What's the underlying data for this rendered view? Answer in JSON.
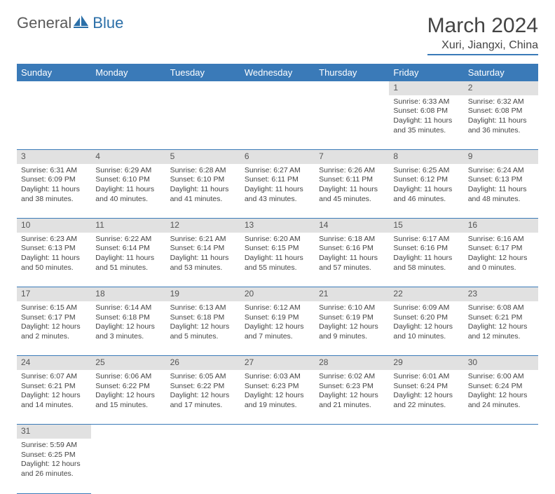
{
  "brand": {
    "part1": "General",
    "part2": "Blue",
    "sail_color": "#2b6fa8"
  },
  "title": "March 2024",
  "location": "Xuri, Jiangxi, China",
  "colors": {
    "header_bg": "#3a7ab8",
    "header_text": "#ffffff",
    "daynum_bg": "#e1e1e1",
    "rule": "#3a7ab8",
    "text": "#444444",
    "bg": "#ffffff"
  },
  "weekdays": [
    "Sunday",
    "Monday",
    "Tuesday",
    "Wednesday",
    "Thursday",
    "Friday",
    "Saturday"
  ],
  "weeks": [
    [
      null,
      null,
      null,
      null,
      null,
      {
        "n": "1",
        "sunrise": "6:33 AM",
        "sunset": "6:08 PM",
        "daylight": "11 hours and 35 minutes."
      },
      {
        "n": "2",
        "sunrise": "6:32 AM",
        "sunset": "6:08 PM",
        "daylight": "11 hours and 36 minutes."
      }
    ],
    [
      {
        "n": "3",
        "sunrise": "6:31 AM",
        "sunset": "6:09 PM",
        "daylight": "11 hours and 38 minutes."
      },
      {
        "n": "4",
        "sunrise": "6:29 AM",
        "sunset": "6:10 PM",
        "daylight": "11 hours and 40 minutes."
      },
      {
        "n": "5",
        "sunrise": "6:28 AM",
        "sunset": "6:10 PM",
        "daylight": "11 hours and 41 minutes."
      },
      {
        "n": "6",
        "sunrise": "6:27 AM",
        "sunset": "6:11 PM",
        "daylight": "11 hours and 43 minutes."
      },
      {
        "n": "7",
        "sunrise": "6:26 AM",
        "sunset": "6:11 PM",
        "daylight": "11 hours and 45 minutes."
      },
      {
        "n": "8",
        "sunrise": "6:25 AM",
        "sunset": "6:12 PM",
        "daylight": "11 hours and 46 minutes."
      },
      {
        "n": "9",
        "sunrise": "6:24 AM",
        "sunset": "6:13 PM",
        "daylight": "11 hours and 48 minutes."
      }
    ],
    [
      {
        "n": "10",
        "sunrise": "6:23 AM",
        "sunset": "6:13 PM",
        "daylight": "11 hours and 50 minutes."
      },
      {
        "n": "11",
        "sunrise": "6:22 AM",
        "sunset": "6:14 PM",
        "daylight": "11 hours and 51 minutes."
      },
      {
        "n": "12",
        "sunrise": "6:21 AM",
        "sunset": "6:14 PM",
        "daylight": "11 hours and 53 minutes."
      },
      {
        "n": "13",
        "sunrise": "6:20 AM",
        "sunset": "6:15 PM",
        "daylight": "11 hours and 55 minutes."
      },
      {
        "n": "14",
        "sunrise": "6:18 AM",
        "sunset": "6:16 PM",
        "daylight": "11 hours and 57 minutes."
      },
      {
        "n": "15",
        "sunrise": "6:17 AM",
        "sunset": "6:16 PM",
        "daylight": "11 hours and 58 minutes."
      },
      {
        "n": "16",
        "sunrise": "6:16 AM",
        "sunset": "6:17 PM",
        "daylight": "12 hours and 0 minutes."
      }
    ],
    [
      {
        "n": "17",
        "sunrise": "6:15 AM",
        "sunset": "6:17 PM",
        "daylight": "12 hours and 2 minutes."
      },
      {
        "n": "18",
        "sunrise": "6:14 AM",
        "sunset": "6:18 PM",
        "daylight": "12 hours and 3 minutes."
      },
      {
        "n": "19",
        "sunrise": "6:13 AM",
        "sunset": "6:18 PM",
        "daylight": "12 hours and 5 minutes."
      },
      {
        "n": "20",
        "sunrise": "6:12 AM",
        "sunset": "6:19 PM",
        "daylight": "12 hours and 7 minutes."
      },
      {
        "n": "21",
        "sunrise": "6:10 AM",
        "sunset": "6:19 PM",
        "daylight": "12 hours and 9 minutes."
      },
      {
        "n": "22",
        "sunrise": "6:09 AM",
        "sunset": "6:20 PM",
        "daylight": "12 hours and 10 minutes."
      },
      {
        "n": "23",
        "sunrise": "6:08 AM",
        "sunset": "6:21 PM",
        "daylight": "12 hours and 12 minutes."
      }
    ],
    [
      {
        "n": "24",
        "sunrise": "6:07 AM",
        "sunset": "6:21 PM",
        "daylight": "12 hours and 14 minutes."
      },
      {
        "n": "25",
        "sunrise": "6:06 AM",
        "sunset": "6:22 PM",
        "daylight": "12 hours and 15 minutes."
      },
      {
        "n": "26",
        "sunrise": "6:05 AM",
        "sunset": "6:22 PM",
        "daylight": "12 hours and 17 minutes."
      },
      {
        "n": "27",
        "sunrise": "6:03 AM",
        "sunset": "6:23 PM",
        "daylight": "12 hours and 19 minutes."
      },
      {
        "n": "28",
        "sunrise": "6:02 AM",
        "sunset": "6:23 PM",
        "daylight": "12 hours and 21 minutes."
      },
      {
        "n": "29",
        "sunrise": "6:01 AM",
        "sunset": "6:24 PM",
        "daylight": "12 hours and 22 minutes."
      },
      {
        "n": "30",
        "sunrise": "6:00 AM",
        "sunset": "6:24 PM",
        "daylight": "12 hours and 24 minutes."
      }
    ],
    [
      {
        "n": "31",
        "sunrise": "5:59 AM",
        "sunset": "6:25 PM",
        "daylight": "12 hours and 26 minutes."
      },
      null,
      null,
      null,
      null,
      null,
      null
    ]
  ],
  "labels": {
    "sunrise": "Sunrise:",
    "sunset": "Sunset:",
    "daylight": "Daylight:"
  }
}
